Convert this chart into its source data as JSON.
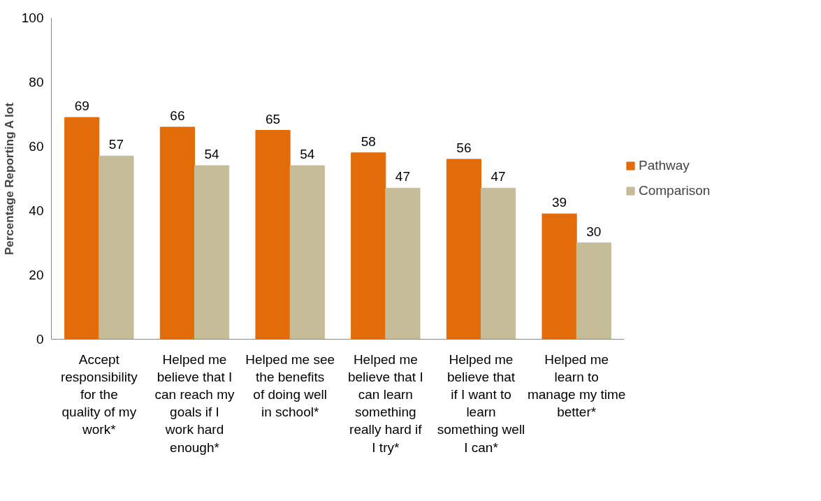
{
  "chart_data": {
    "type": "bar",
    "ylabel": "Percentage Reporting A lot",
    "categories": [
      "Accept responsibility for the quality of my work*",
      "Helped me believe that I can reach my goals if I work hard enough*",
      "Helped me see the benefits of doing well in school*",
      "Helped me believe that I can learn something really hard if I try*",
      "Helped me believe that if I want to learn something well I can*",
      "Helped me learn to manage my time better*"
    ],
    "series": [
      {
        "name": "Pathway",
        "color": "#e36c0a",
        "values": [
          69,
          66,
          65,
          58,
          56,
          39
        ]
      },
      {
        "name": "Comparison",
        "color": "#c4bd97",
        "values": [
          57,
          54,
          54,
          47,
          47,
          30
        ]
      }
    ],
    "ylim": [
      0,
      100
    ],
    "yticks": [
      0,
      20,
      40,
      60,
      80,
      100
    ],
    "data_labels": true,
    "legend": "right",
    "grid": false
  }
}
